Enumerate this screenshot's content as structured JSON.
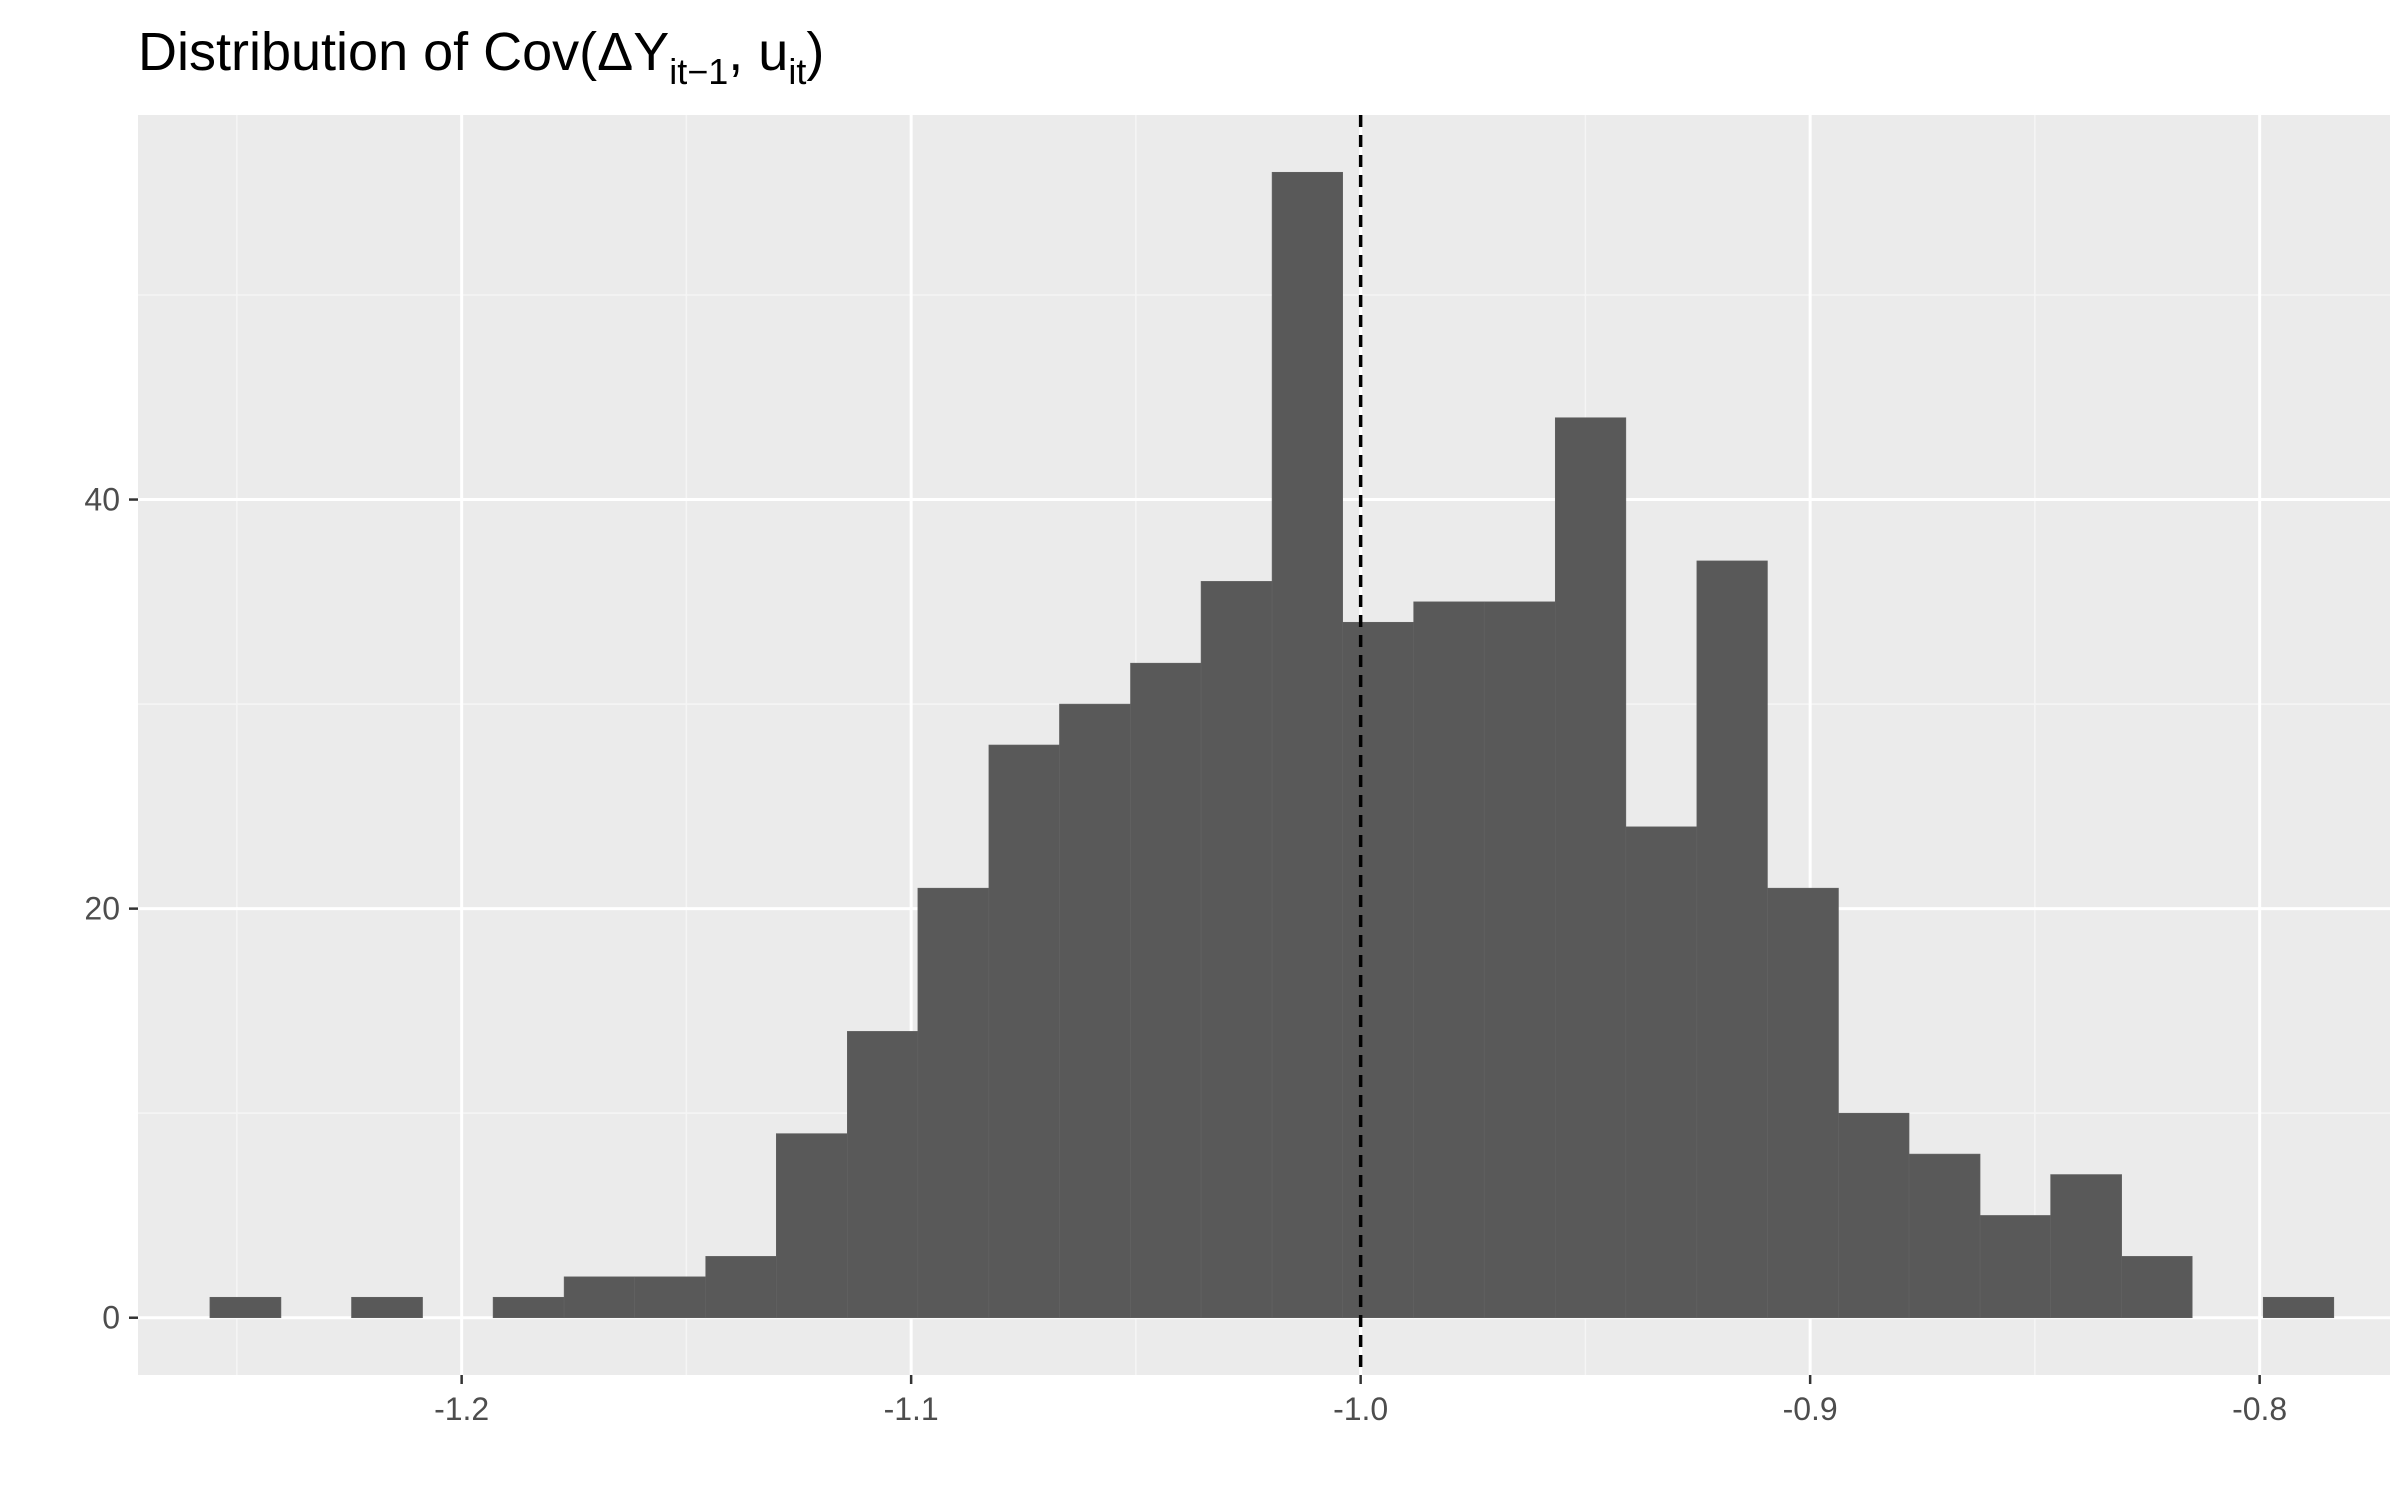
{
  "chart_data": {
    "type": "bar",
    "title": {
      "prefix": "Distribution of Cov(ΔY",
      "sub1": "it−1",
      "middle": ", u",
      "sub2": "it",
      "suffix": ")"
    },
    "xlabel": "",
    "ylabel": "",
    "xlim": [
      -1.272,
      -0.771
    ],
    "ylim": [
      -2.8,
      58.8
    ],
    "x_ticks": [
      -1.2,
      -1.1,
      -1.0,
      -0.9,
      -0.8
    ],
    "x_tick_labels": [
      "-1.2",
      "-1.1",
      "-1.0",
      "-0.9",
      "-0.8"
    ],
    "y_ticks": [
      0,
      20,
      40
    ],
    "y_tick_labels": [
      "0",
      "20",
      "40"
    ],
    "bin_width": 0.01575,
    "bins": [
      {
        "x0": -1.256,
        "x1": -1.2402,
        "count": 1
      },
      {
        "x0": -1.2402,
        "x1": -1.2245,
        "count": 0
      },
      {
        "x0": -1.2245,
        "x1": -1.2087,
        "count": 1
      },
      {
        "x0": -1.2087,
        "x1": -1.193,
        "count": 0
      },
      {
        "x0": -1.193,
        "x1": -1.1772,
        "count": 1
      },
      {
        "x0": -1.1772,
        "x1": -1.1615,
        "count": 2
      },
      {
        "x0": -1.1615,
        "x1": -1.1457,
        "count": 2
      },
      {
        "x0": -1.1457,
        "x1": -1.13,
        "count": 3
      },
      {
        "x0": -1.13,
        "x1": -1.1142,
        "count": 9
      },
      {
        "x0": -1.1142,
        "x1": -1.0985,
        "count": 14
      },
      {
        "x0": -1.0985,
        "x1": -1.0827,
        "count": 21
      },
      {
        "x0": -1.0827,
        "x1": -1.067,
        "count": 28
      },
      {
        "x0": -1.067,
        "x1": -1.0512,
        "count": 30
      },
      {
        "x0": -1.0512,
        "x1": -1.0355,
        "count": 32
      },
      {
        "x0": -1.0355,
        "x1": -1.0197,
        "count": 36
      },
      {
        "x0": -1.0197,
        "x1": -1.004,
        "count": 56
      },
      {
        "x0": -1.004,
        "x1": -0.9882,
        "count": 34
      },
      {
        "x0": -0.9882,
        "x1": -0.9725,
        "count": 35
      },
      {
        "x0": -0.9725,
        "x1": -0.9567,
        "count": 35
      },
      {
        "x0": -0.9567,
        "x1": -0.941,
        "count": 44
      },
      {
        "x0": -0.941,
        "x1": -0.9252,
        "count": 24
      },
      {
        "x0": -0.9252,
        "x1": -0.9095,
        "count": 37
      },
      {
        "x0": -0.9095,
        "x1": -0.8937,
        "count": 21
      },
      {
        "x0": -0.8937,
        "x1": -0.878,
        "count": 10
      },
      {
        "x0": -0.878,
        "x1": -0.8622,
        "count": 8
      },
      {
        "x0": -0.8622,
        "x1": -0.8465,
        "count": 5
      },
      {
        "x0": -0.8465,
        "x1": -0.8307,
        "count": 7
      },
      {
        "x0": -0.8307,
        "x1": -0.815,
        "count": 3
      },
      {
        "x0": -0.815,
        "x1": -0.7992,
        "count": 0
      },
      {
        "x0": -0.7992,
        "x1": -0.7835,
        "count": 1
      }
    ],
    "reference_line": {
      "x": -1.0,
      "style": "dashed",
      "color": "#000000"
    },
    "colors": {
      "bar_fill": "#595959",
      "panel_background": "#ebebeb",
      "grid_major": "#ffffff",
      "grid_minor": "#f5f5f5"
    },
    "grid": true,
    "legend": "none"
  }
}
